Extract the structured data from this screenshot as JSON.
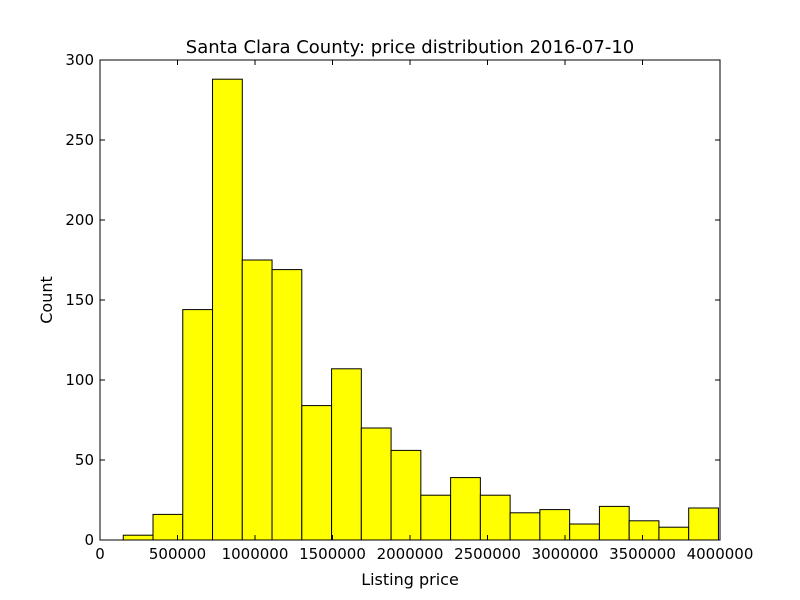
{
  "chart_data": {
    "type": "bar",
    "title": "Santa Clara County: price distribution 2016-07-10",
    "xlabel": "Listing price",
    "ylabel": "Count",
    "xlim": [
      0,
      4000000
    ],
    "ylim": [
      0,
      300
    ],
    "x_ticks": [
      0,
      500000,
      1000000,
      1500000,
      2000000,
      2500000,
      3000000,
      3500000,
      4000000
    ],
    "x_tick_labels": [
      "0",
      "500000",
      "1000000",
      "1500000",
      "2000000",
      "2500000",
      "3000000",
      "3500000",
      "4000000"
    ],
    "y_ticks": [
      0,
      50,
      100,
      150,
      200,
      250,
      300
    ],
    "y_tick_labels": [
      "0",
      "50",
      "100",
      "150",
      "200",
      "250",
      "300"
    ],
    "grid": false,
    "bar_color": "#ffff00",
    "edge_color": "#000000",
    "bins": [
      {
        "x0": 150000,
        "x1": 342000,
        "count": 3
      },
      {
        "x0": 342000,
        "x1": 534000,
        "count": 16
      },
      {
        "x0": 534000,
        "x1": 726000,
        "count": 144
      },
      {
        "x0": 726000,
        "x1": 918000,
        "count": 288
      },
      {
        "x0": 918000,
        "x1": 1110000,
        "count": 175
      },
      {
        "x0": 1110000,
        "x1": 1302000,
        "count": 169
      },
      {
        "x0": 1302000,
        "x1": 1494000,
        "count": 84
      },
      {
        "x0": 1494000,
        "x1": 1686000,
        "count": 107
      },
      {
        "x0": 1686000,
        "x1": 1878000,
        "count": 70
      },
      {
        "x0": 1878000,
        "x1": 2070000,
        "count": 56
      },
      {
        "x0": 2070000,
        "x1": 2262000,
        "count": 28
      },
      {
        "x0": 2262000,
        "x1": 2454000,
        "count": 39
      },
      {
        "x0": 2454000,
        "x1": 2646000,
        "count": 28
      },
      {
        "x0": 2646000,
        "x1": 2838000,
        "count": 17
      },
      {
        "x0": 2838000,
        "x1": 3030000,
        "count": 19
      },
      {
        "x0": 3030000,
        "x1": 3222000,
        "count": 10
      },
      {
        "x0": 3222000,
        "x1": 3414000,
        "count": 21
      },
      {
        "x0": 3414000,
        "x1": 3606000,
        "count": 12
      },
      {
        "x0": 3606000,
        "x1": 3798000,
        "count": 8
      },
      {
        "x0": 3798000,
        "x1": 3990000,
        "count": 20
      }
    ]
  }
}
